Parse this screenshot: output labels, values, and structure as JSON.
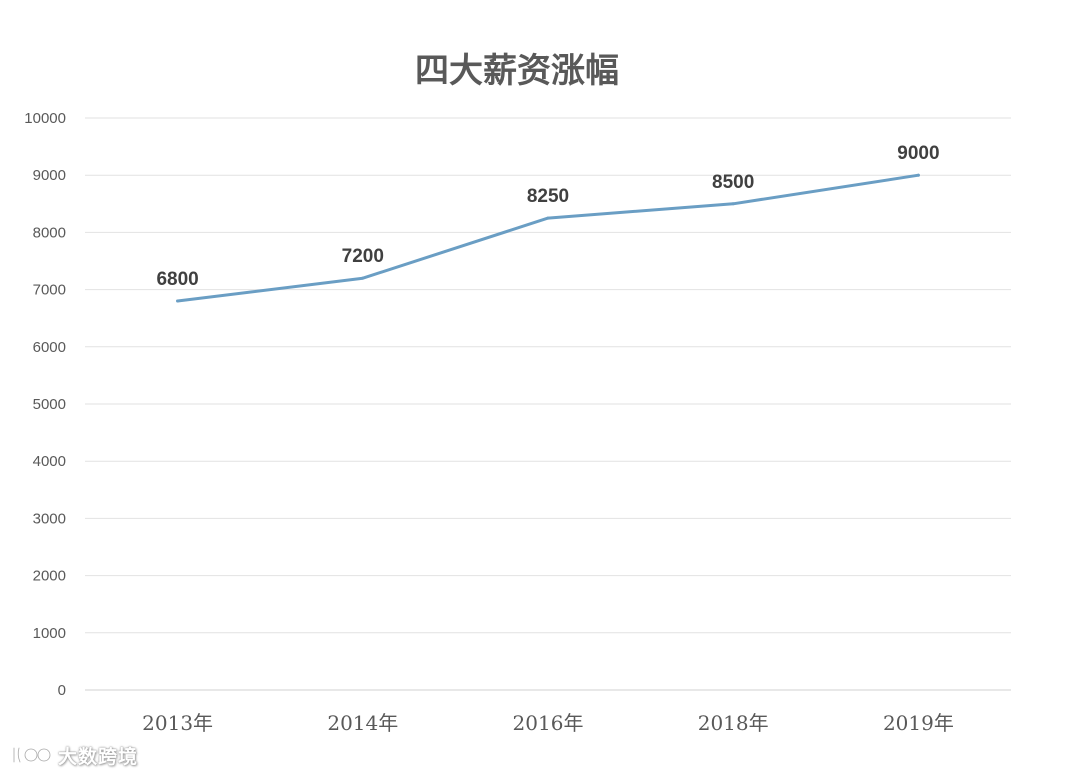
{
  "chart_data": {
    "type": "line",
    "title": "四大薪资涨幅",
    "categories": [
      "2013年",
      "2014年",
      "2016年",
      "2018年",
      "2019年"
    ],
    "series": [
      {
        "values": [
          6800,
          7200,
          8250,
          8500,
          9000
        ],
        "color": "#6a9ec4"
      }
    ],
    "ylim": [
      0,
      10000
    ],
    "yticks": [
      0,
      1000,
      2000,
      3000,
      4000,
      5000,
      6000,
      7000,
      8000,
      9000,
      10000
    ],
    "grid": true,
    "data_labels": true,
    "legend": "none"
  },
  "watermark": {
    "text": "大数跨境",
    "icon": "brand-logo-icon"
  }
}
